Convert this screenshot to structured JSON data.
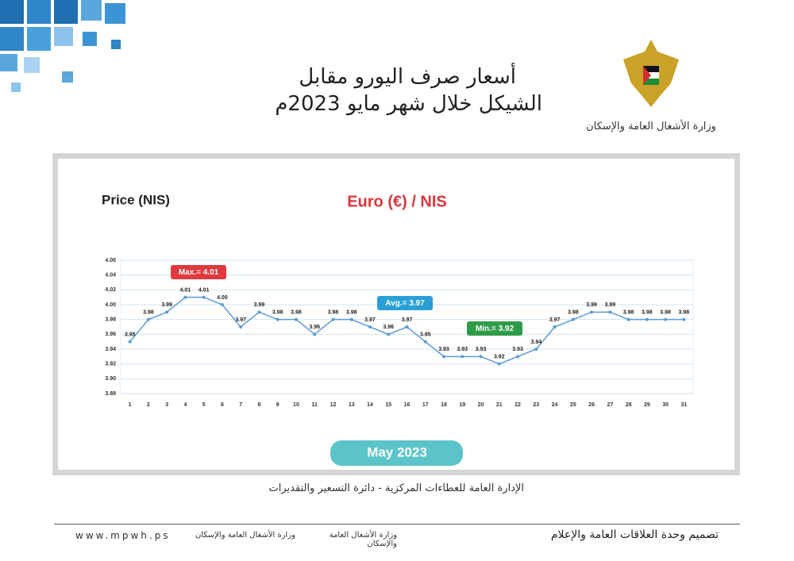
{
  "header": {
    "title_line1": "أسعار صرف اليورو مقابل",
    "title_line2": "الشيكل خلال شهر مايو 2023م",
    "ministry": "وزارة الأشغال العامة والإسكان"
  },
  "chart_data": {
    "type": "line",
    "title": "Euro (€) / NIS",
    "y_label": "Price (NIS)",
    "x_label": "May 2023",
    "categories": [
      1,
      2,
      3,
      4,
      5,
      6,
      7,
      8,
      9,
      10,
      11,
      12,
      13,
      14,
      15,
      16,
      17,
      18,
      19,
      20,
      21,
      22,
      23,
      24,
      25,
      26,
      27,
      28,
      29,
      30,
      31
    ],
    "series": [
      {
        "color": "#5b9bd5",
        "values": [
          3.95,
          3.98,
          3.99,
          4.01,
          4.01,
          4.0,
          3.97,
          3.99,
          3.98,
          3.98,
          3.96,
          3.98,
          3.98,
          3.97,
          3.96,
          3.97,
          3.95,
          3.93,
          3.93,
          3.93,
          3.92,
          3.93,
          3.94,
          3.97,
          3.98,
          3.99,
          3.99,
          3.98,
          3.98,
          3.98,
          3.98
        ],
        "value_labels": [
          "3.95",
          "3.98",
          "3.99",
          "4.01",
          "4.01",
          "4.00",
          "3.97",
          "3.99",
          "3.98",
          "3.98",
          "3.96",
          "3.98",
          "3.98",
          "3.97",
          "3.96",
          "3.97",
          "3.95",
          "3.93",
          "3.93",
          "3.93",
          "3.92",
          "3.93",
          "3.94",
          "3.97",
          "3.98",
          "3.99",
          "3.99",
          "3.98",
          "3.98",
          "3.98",
          "3.98"
        ]
      }
    ],
    "ylim": [
      3.88,
      4.06
    ],
    "yticks": [
      3.88,
      {
        "value": 3.9,
        "label": "3.90"
      },
      3.92,
      3.94,
      3.96,
      3.98,
      {
        "value": 4,
        "label": "4.00"
      },
      4.02,
      4.04,
      4.06
    ],
    "grid": true,
    "annotations": [
      {
        "text": "Max.= 4.01",
        "color": "#e0393e"
      },
      {
        "text": "Avg.= 3.97",
        "color": "#2a9fd6"
      },
      {
        "text": "Min.= 3.92",
        "color": "#2e9c4a"
      }
    ]
  },
  "footer": {
    "source": "الإدارة العامة للعطاءات المركزية - دائرة التسعير والتقديرات",
    "design": "تصميم وحدة العلاقات العامة والإعلام",
    "website": "www.mpwh.ps",
    "social_1": "وزارة الأشغال العامة والإسكان",
    "social_2": "وزارة الأشغال العامة والإسكان"
  }
}
